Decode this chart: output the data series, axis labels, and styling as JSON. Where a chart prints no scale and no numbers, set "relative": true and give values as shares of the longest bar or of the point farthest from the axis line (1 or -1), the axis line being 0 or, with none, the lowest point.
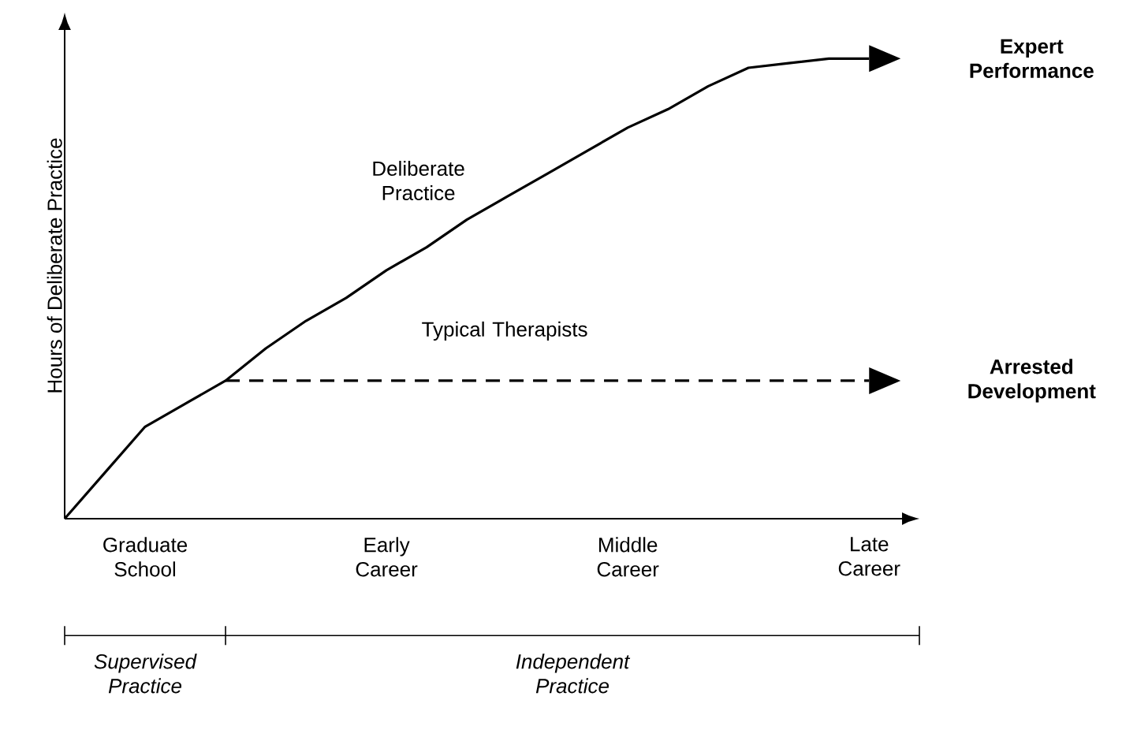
{
  "chart_data": {
    "type": "line",
    "relative": true,
    "ylabel": "Hours of Deliberate Practice",
    "categories": [
      null,
      null,
      "Graduate School",
      null,
      null,
      null,
      null,
      null,
      "Early Career",
      null,
      null,
      null,
      null,
      null,
      "Middle Career",
      null,
      null,
      null,
      null,
      null,
      "Late Career"
    ],
    "series": [
      {
        "name": "Deliberate Practice",
        "color": "#000000",
        "line_style": "solid",
        "values": [
          0,
          0.1,
          0.2,
          0.25,
          0.3,
          0.37,
          0.43,
          0.48,
          0.54,
          0.59,
          0.65,
          0.7,
          0.75,
          0.8,
          0.85,
          0.89,
          0.94,
          0.98,
          0.99,
          1.0,
          1.0
        ]
      },
      {
        "name": "Typical Therapists",
        "color": "#000000",
        "line_style": "dashed",
        "values": [
          null,
          null,
          null,
          null,
          0.3,
          0.3,
          0.3,
          0.3,
          0.3,
          0.3,
          0.3,
          0.3,
          0.3,
          0.3,
          0.3,
          0.3,
          0.3,
          0.3,
          0.3,
          0.3,
          0.3
        ]
      }
    ],
    "annotations": [
      "Expert Performance",
      "Arrested Development",
      "Supervised Practice",
      "Independent Practice"
    ]
  }
}
